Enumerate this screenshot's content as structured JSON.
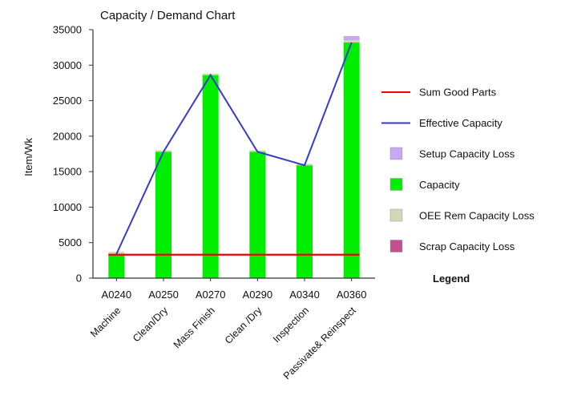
{
  "chart_data": {
    "type": "bar",
    "title": "Capacity / Demand Chart",
    "ylabel": "Item/Wk",
    "ylim": [
      0,
      35000
    ],
    "yticks": [
      0,
      5000,
      10000,
      15000,
      20000,
      25000,
      30000,
      35000
    ],
    "categories": [
      "A0240",
      "A0250",
      "A0270",
      "A0290",
      "A0340",
      "A0360"
    ],
    "subcategories": [
      "Machine",
      "Clean/Dry",
      "Mass Finish",
      "Clean /Dry",
      "Inspection",
      "Passivate& Reinspect"
    ],
    "series": [
      {
        "name": "Capacity",
        "type": "bar",
        "color": "#00ee00",
        "values": [
          3400,
          17800,
          28600,
          17800,
          15900,
          33200
        ]
      },
      {
        "name": "OEE Rem Capacity Loss",
        "type": "bar",
        "color": "#cfd9b8",
        "values": [
          300,
          200,
          200,
          200,
          200,
          300
        ]
      },
      {
        "name": "Setup Capacity Loss",
        "type": "bar",
        "color": "#c8a8f0",
        "values": [
          0,
          0,
          0,
          0,
          0,
          600
        ]
      },
      {
        "name": "Scrap Capacity Loss",
        "type": "bar",
        "color": "#c0508f",
        "values": [
          0,
          0,
          0,
          0,
          0,
          0
        ]
      },
      {
        "name": "Effective Capacity",
        "type": "line",
        "color": "#3a3ac8",
        "values": [
          3400,
          17800,
          28600,
          17800,
          15900,
          33200
        ]
      },
      {
        "name": "Sum Good Parts",
        "type": "line",
        "color": "#ee0000",
        "values": [
          3300,
          3300,
          3300,
          3300,
          3300,
          3300
        ]
      }
    ],
    "legend": {
      "title": "Legend",
      "position": "right",
      "items": [
        {
          "name": "Sum Good Parts",
          "kind": "line",
          "color": "#ee0000"
        },
        {
          "name": "Effective Capacity",
          "kind": "line",
          "color": "#3a3ac8"
        },
        {
          "name": "Setup Capacity Loss",
          "kind": "box",
          "color": "#c8a8f0"
        },
        {
          "name": "Capacity",
          "kind": "box",
          "color": "#00ee00"
        },
        {
          "name": "OEE Rem Capacity Loss",
          "kind": "box",
          "color": "#cfd9b8"
        },
        {
          "name": "Scrap Capacity Loss",
          "kind": "box",
          "color": "#c0508f"
        }
      ]
    },
    "grid": false
  }
}
